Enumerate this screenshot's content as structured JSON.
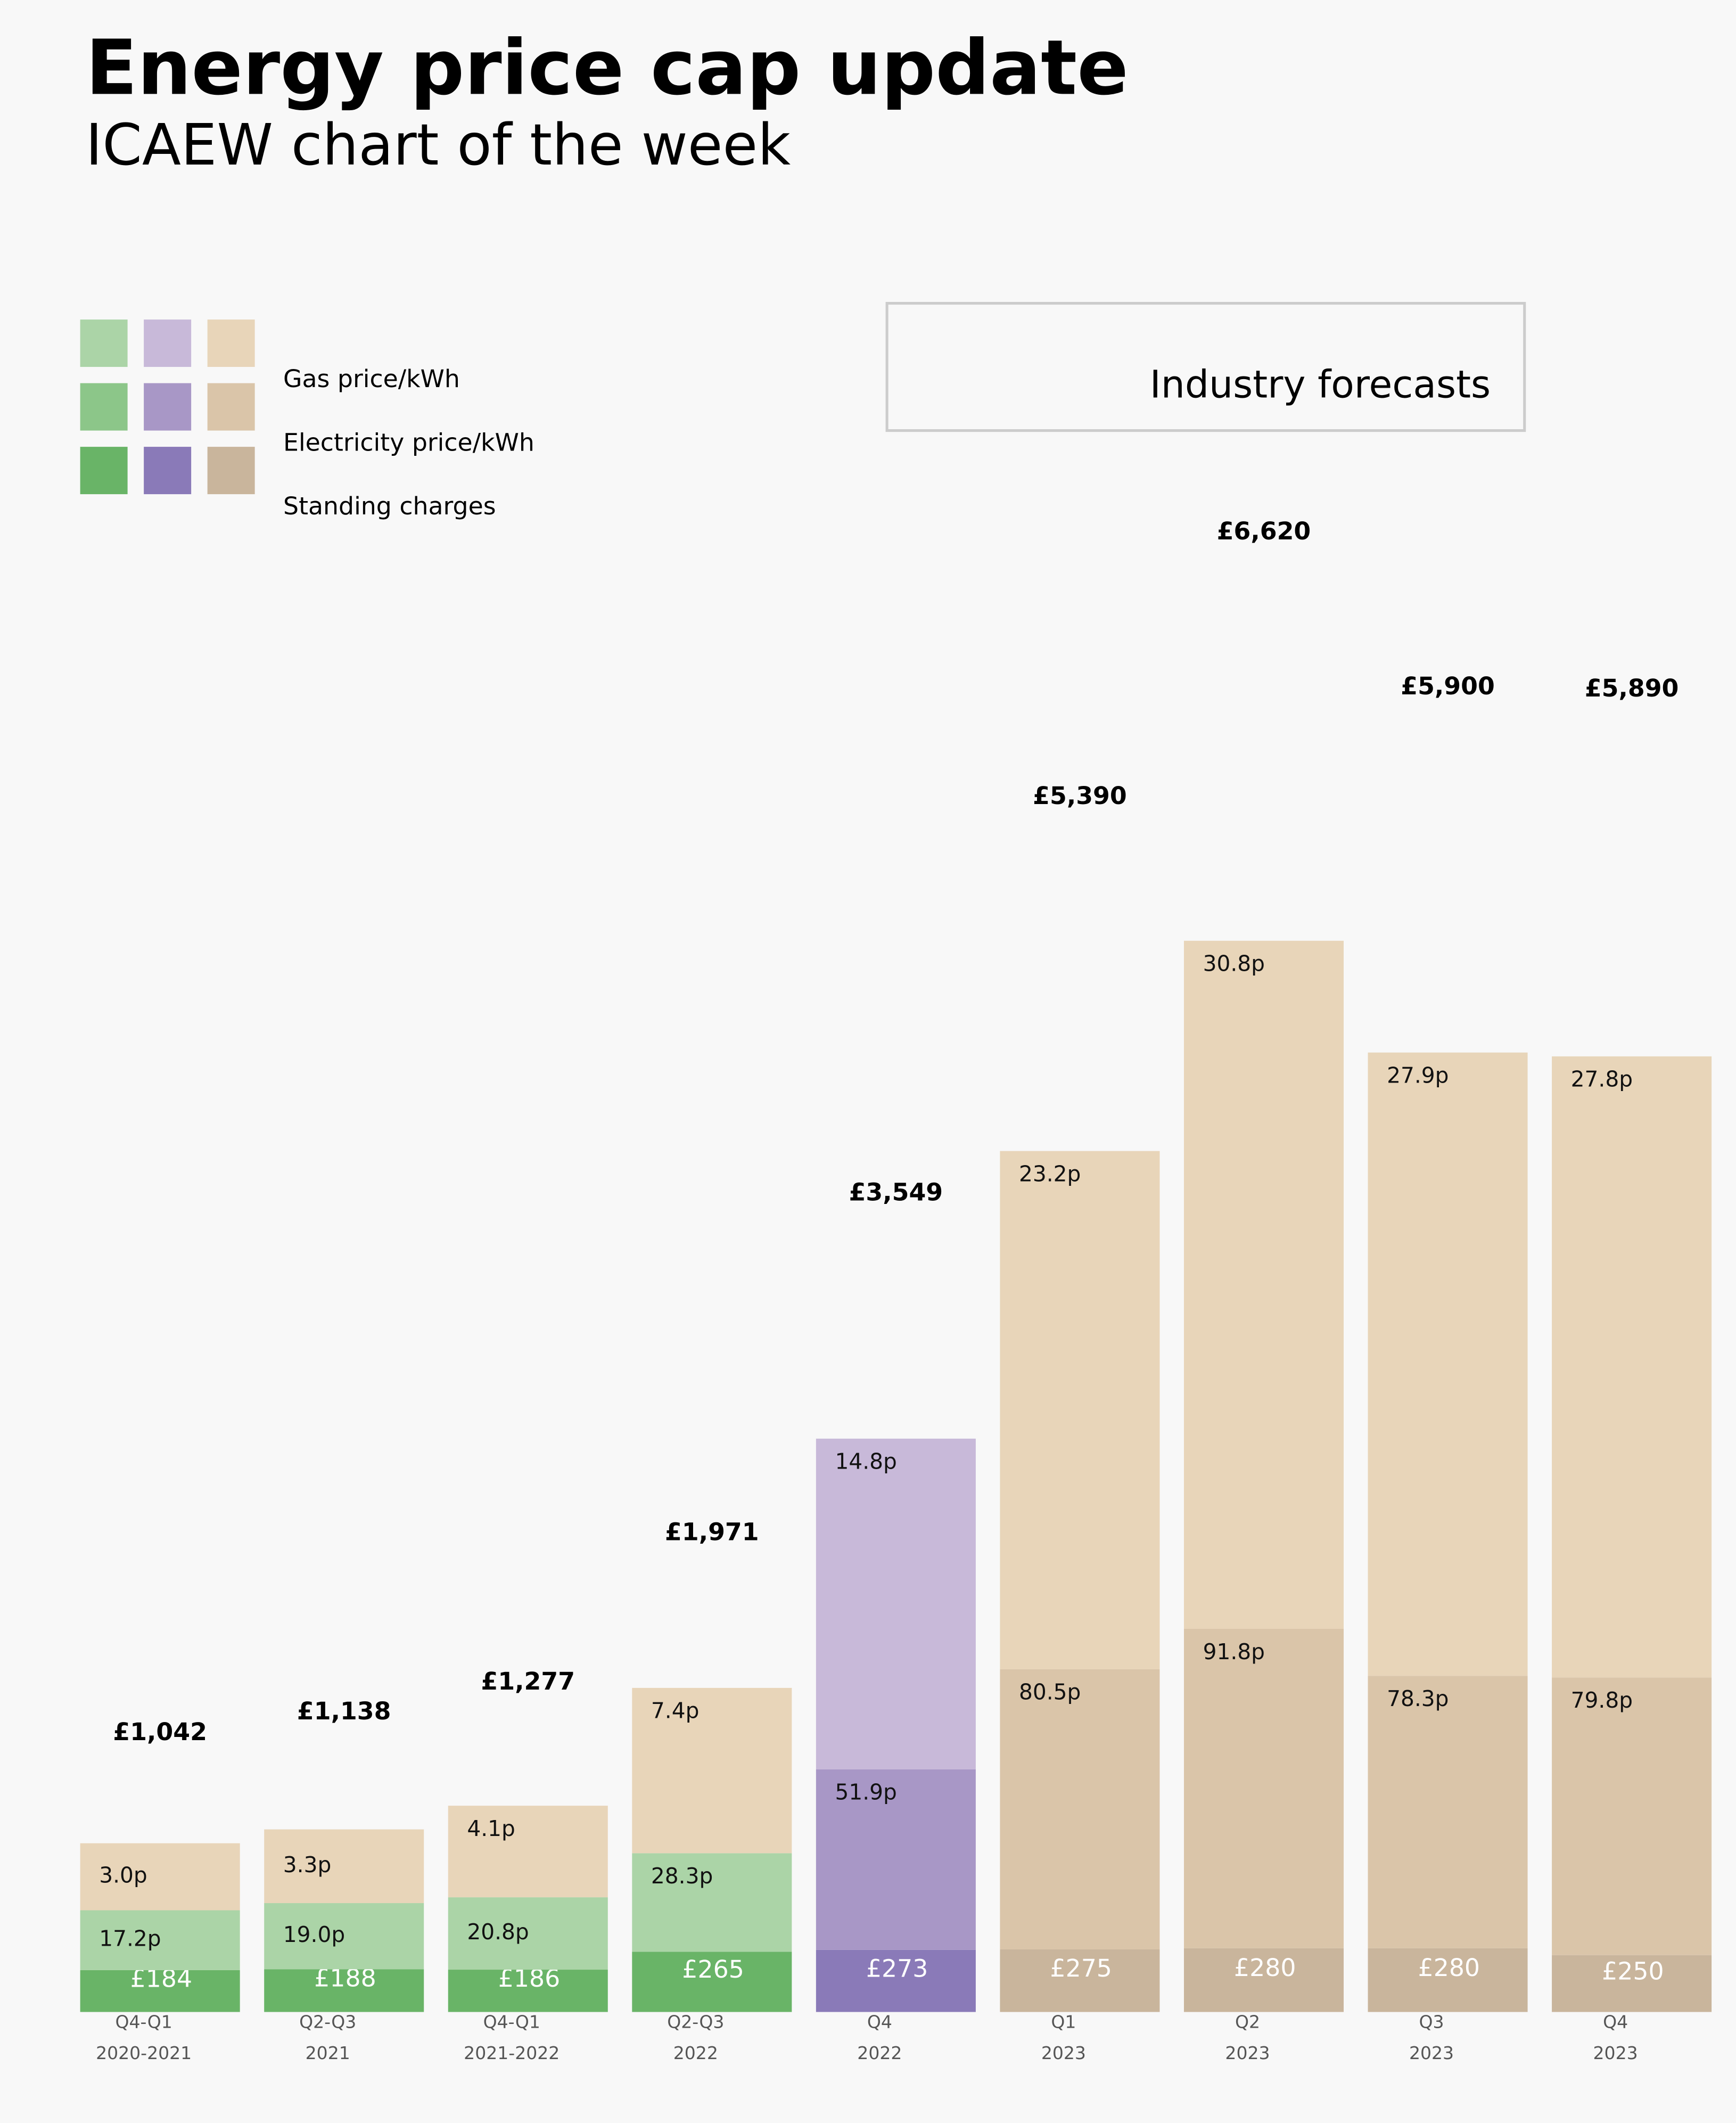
{
  "chart_data": {
    "type": "stacked-bar",
    "title": "Energy price cap update",
    "subtitle": "ICAEW chart of the week",
    "annotation": "Industry forecasts",
    "categories": [
      [
        "Q4-Q1",
        "2020-2021"
      ],
      [
        "Q2-Q3",
        "2021"
      ],
      [
        "Q4-Q1",
        "2021-2022"
      ],
      [
        "Q2-Q3",
        "2022"
      ],
      [
        "Q4",
        "2022"
      ],
      [
        "Q1",
        "2023"
      ],
      [
        "Q2",
        "2023"
      ],
      [
        "Q3",
        "2023"
      ],
      [
        "Q4",
        "2023"
      ]
    ],
    "series": [
      {
        "name": "Standing charges",
        "values": [
          184,
          188,
          186,
          265,
          273,
          275,
          280,
          280,
          250
        ],
        "value_labels": [
          "£184",
          "£188",
          "£186",
          "£265",
          "£273",
          "£275",
          "£280",
          "£280",
          "£250"
        ],
        "colors": [
          "#69b467",
          "#69b467",
          "#69b467",
          "#69b467",
          "#8a7ab8",
          "#c9b59c",
          "#c9b59c",
          "#c9b59c",
          "#c9b59c"
        ],
        "legend_colors": [
          "#69b467",
          "#8a7ab8",
          "#c9b59c"
        ]
      },
      {
        "name": "Electricity price/kWh",
        "values": [
          17.2,
          19.0,
          20.8,
          28.3,
          51.9,
          80.5,
          91.8,
          78.3,
          79.8
        ],
        "value_labels": [
          "17.2p",
          "19.0p",
          "20.8p",
          "28.3p",
          "51.9p",
          "80.5p",
          "91.8p",
          "78.3p",
          "79.8p"
        ],
        "colors": [
          "#abd4a7",
          "#abd4a7",
          "#abd4a7",
          "#abd4a7",
          "#a897c6",
          "#dac5a9",
          "#dac5a9",
          "#dac5a9",
          "#dac5a9"
        ],
        "legend_colors": [
          "#8cc689",
          "#a897c6",
          "#dac5a9"
        ]
      },
      {
        "name": "Gas price/kWh",
        "values": [
          3.0,
          3.3,
          4.1,
          7.4,
          14.8,
          23.2,
          30.8,
          27.9,
          27.8
        ],
        "value_labels": [
          "3.0p",
          "3.3p",
          "4.1p",
          "7.4p",
          "14.8p",
          "23.2p",
          "30.8p",
          "27.9p",
          "27.8p"
        ],
        "colors": [
          "#e8d5b9",
          "#e8d5b9",
          "#e8d5b9",
          "#e8d5b9",
          "#c8b9d9",
          "#e8d5b9",
          "#e8d5b9",
          "#e8d5b9",
          "#e8d5b9"
        ],
        "legend_colors": [
          "#abd4a7",
          "#c8b9d9",
          "#e8d5b9"
        ]
      }
    ],
    "totals": {
      "values": [
        1042,
        1138,
        1277,
        1971,
        3549,
        5390,
        6620,
        5900,
        5890
      ],
      "value_labels": [
        "£1,042",
        "£1,138",
        "£1,277",
        "£1,971",
        "£3,549",
        "£5,390",
        "£6,620",
        "£5,900",
        "£5,890"
      ]
    }
  }
}
